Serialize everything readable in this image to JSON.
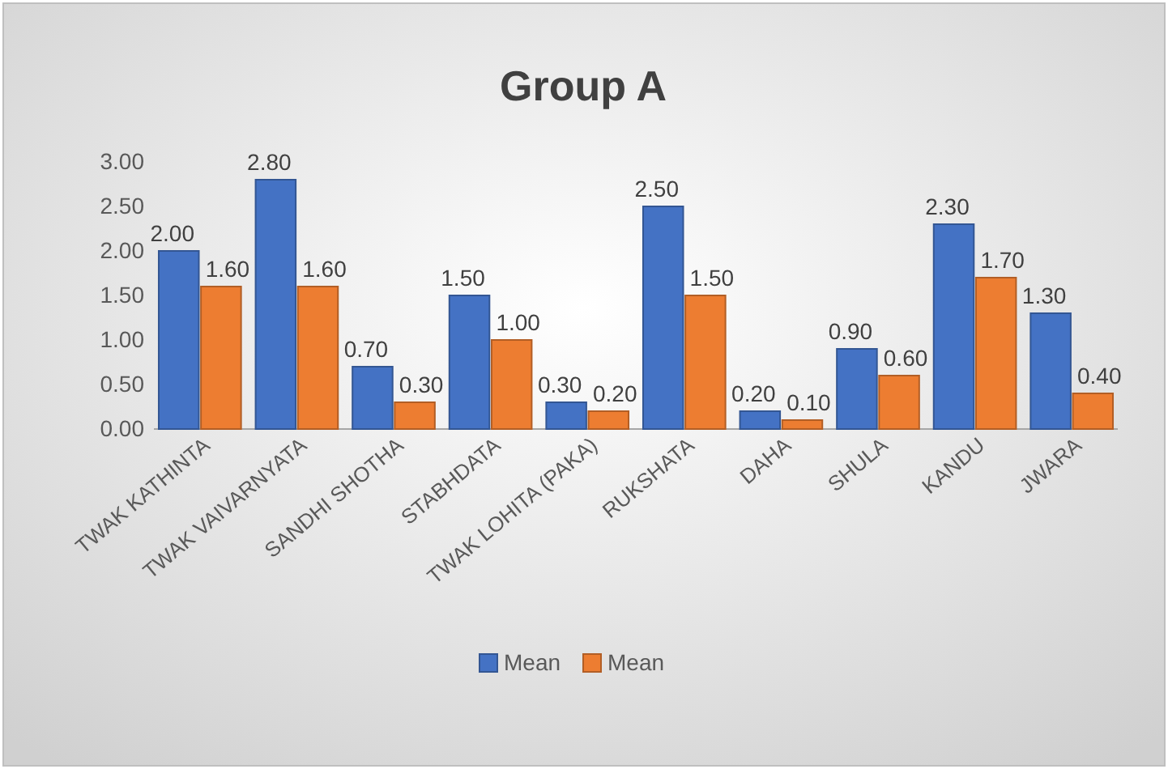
{
  "chart_data": {
    "type": "bar",
    "title": "Group A",
    "categories": [
      "TWAK KATHINTA",
      "TWAK VAIVARNYATA",
      "SANDHI SHOTHA",
      "STABHDATA",
      "TWAK LOHITA (PAKA)",
      "RUKSHATA",
      "DAHA",
      "SHULA",
      "KANDU",
      "JWARA"
    ],
    "series": [
      {
        "name": "Mean",
        "color": "#4472c4",
        "values": [
          2.0,
          2.8,
          0.7,
          1.5,
          0.3,
          2.5,
          0.2,
          0.9,
          2.3,
          1.3
        ],
        "value_labels": [
          "2.00",
          "2.80",
          "0.70",
          "1.50",
          "0.30",
          "2.50",
          "0.20",
          "0.90",
          "2.30",
          "1.30"
        ]
      },
      {
        "name": "Mean",
        "color": "#ed7d31",
        "values": [
          1.6,
          1.6,
          0.3,
          1.0,
          0.2,
          1.5,
          0.1,
          0.6,
          1.7,
          0.4
        ],
        "value_labels": [
          "1.60",
          "1.60",
          "0.30",
          "1.00",
          "0.20",
          "1.50",
          "0.10",
          "0.60",
          "1.70",
          "0.40"
        ]
      }
    ],
    "ylim": [
      0,
      3
    ],
    "yticks": [
      {
        "value": 0,
        "label": "0.00"
      },
      {
        "value": 0.5,
        "label": "0.50"
      },
      {
        "value": 1,
        "label": "1.00"
      },
      {
        "value": 1.5,
        "label": "1.50"
      },
      {
        "value": 2,
        "label": "2.00"
      },
      {
        "value": 2.5,
        "label": "2.50"
      },
      {
        "value": 3,
        "label": "3.00"
      }
    ],
    "grid": false,
    "legend": "bottom"
  }
}
